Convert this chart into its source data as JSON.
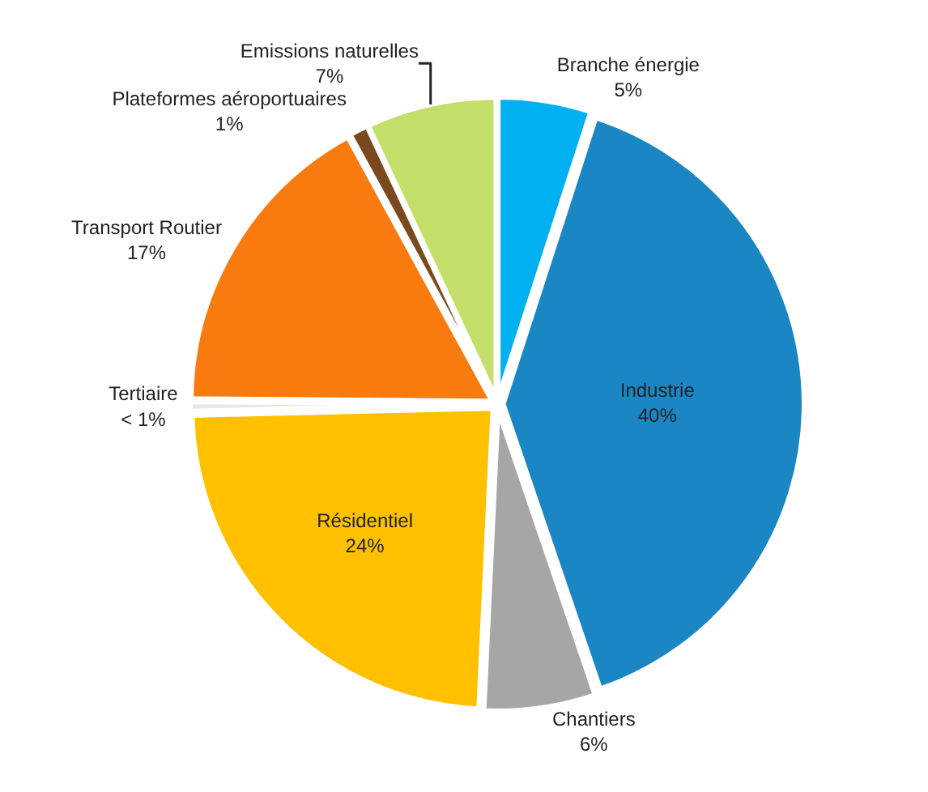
{
  "chart_data": {
    "type": "pie",
    "categories": [
      "Branche énergie",
      "Industrie",
      "Chantiers",
      "Résidentiel",
      "Tertiaire",
      "Transport Routier",
      "Plateformes aéroportuaires",
      "Emissions naturelles"
    ],
    "values": [
      5,
      40,
      6,
      24,
      0.5,
      17,
      1,
      7
    ],
    "value_labels": [
      "5%",
      "40%",
      "6%",
      "24%",
      "< 1%",
      "17%",
      "1%",
      "7%"
    ],
    "colors": [
      "#00b0f0",
      "#1a87c4",
      "#a6a6a6",
      "#ffc000",
      "#e8e8e8",
      "#f97b0f",
      "#7a4a1e",
      "#c3df6a"
    ]
  }
}
